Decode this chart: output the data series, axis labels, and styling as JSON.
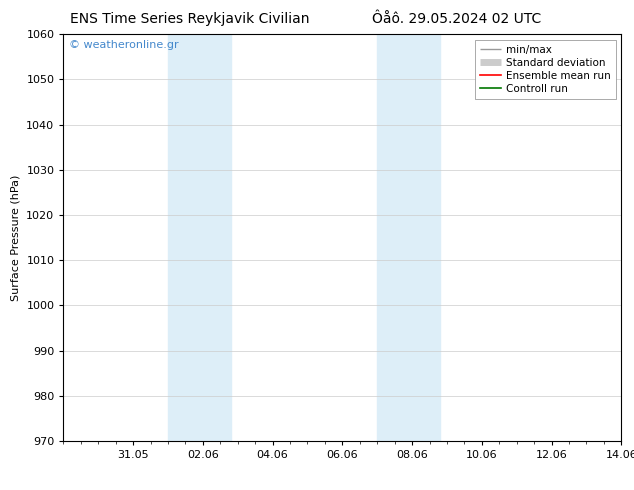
{
  "title_left": "ENS Time Series Reykjavik Civilian",
  "title_right": "Ôåô. 29.05.2024 02 UTC",
  "ylabel": "Surface Pressure (hPa)",
  "ylim": [
    970,
    1060
  ],
  "yticks": [
    970,
    980,
    990,
    1000,
    1010,
    1020,
    1030,
    1040,
    1050,
    1060
  ],
  "xlim": [
    0,
    16
  ],
  "xtick_positions": [
    2,
    4,
    6,
    8,
    10,
    12,
    14,
    16
  ],
  "xtick_labels": [
    "31.05",
    "02.06",
    "04.06",
    "06.06",
    "08.06",
    "10.06",
    "12.06",
    "14.06"
  ],
  "shaded_bands": [
    {
      "x_start": 3.0,
      "x_end": 4.8
    },
    {
      "x_start": 9.0,
      "x_end": 10.8
    }
  ],
  "shade_color": "#ddeef8",
  "watermark": "© weatheronline.gr",
  "watermark_color": "#4488cc",
  "legend_items": [
    {
      "label": "min/max",
      "color": "#999999",
      "lw": 1.0
    },
    {
      "label": "Standard deviation",
      "color": "#cccccc",
      "lw": 5
    },
    {
      "label": "Ensemble mean run",
      "color": "#ff0000",
      "lw": 1.2
    },
    {
      "label": "Controll run",
      "color": "#007700",
      "lw": 1.2
    }
  ],
  "background_color": "#ffffff",
  "grid_color": "#cccccc",
  "title_fontsize": 10,
  "tick_fontsize": 8,
  "label_fontsize": 8,
  "legend_fontsize": 7.5
}
